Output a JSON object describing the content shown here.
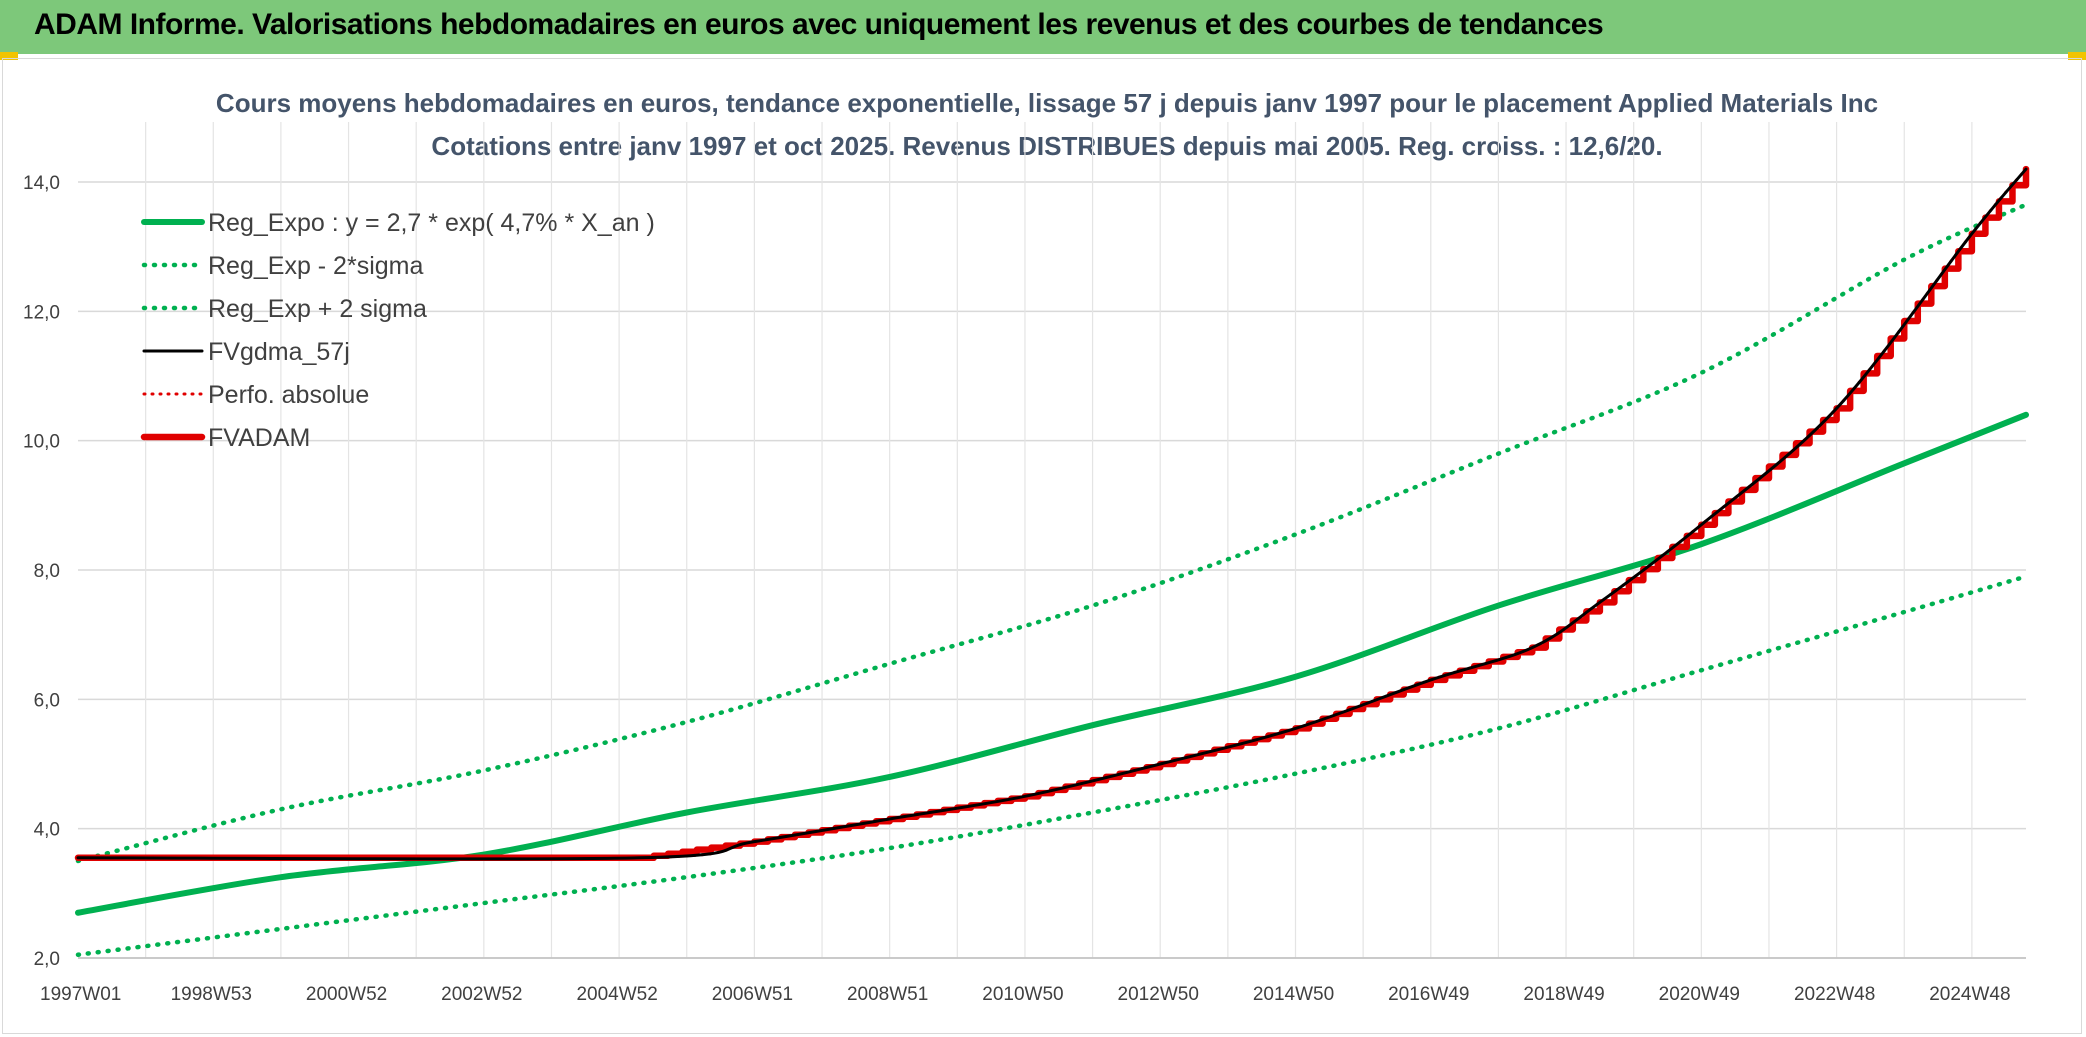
{
  "banner": {
    "title": "ADAM Informe. Valorisations hebdomadaires en euros avec uniquement les revenus et des courbes de tendances"
  },
  "colors": {
    "banner": "#7dc87a",
    "trend": "#00b050",
    "fv": "#000000",
    "adam": "#e00000",
    "accent": "#f2c400"
  },
  "chart_data": {
    "type": "line",
    "title": "Cours moyens hebdomadaires en euros, tendance exponentielle, lissage 57 j depuis janv 1997 pour le placement Applied Materials Inc",
    "subtitle": "Cotations entre janv 1997 et oct 2025. Revenus DISTRIBUES depuis mai 2005. Reg. croiss. : 12,6/20.",
    "xlabel": "",
    "ylabel": "",
    "ylim": [
      2.0,
      14.0
    ],
    "y_ticks": [
      "2,0",
      "4,0",
      "6,0",
      "8,0",
      "10,0",
      "12,0",
      "14,0"
    ],
    "x_ticks": [
      "1997W01",
      "1998W53",
      "2000W52",
      "2002W52",
      "2004W52",
      "2006W51",
      "2008W51",
      "2010W50",
      "2012W50",
      "2014W50",
      "2016W49",
      "2018W49",
      "2020W49",
      "2022W48",
      "2024W48"
    ],
    "grid": true,
    "legend_placement": "top-left",
    "series": [
      {
        "name": "Reg_Expo : y = 2,7 * exp( 4,7% *  X_an )",
        "style": "solid-green",
        "x": [
          1997,
          2000,
          2003,
          2006,
          2009,
          2012,
          2015,
          2018,
          2021,
          2024,
          2025.8
        ],
        "y": [
          2.7,
          3.25,
          3.6,
          4.25,
          4.8,
          5.6,
          6.35,
          7.45,
          8.4,
          9.65,
          10.4
        ]
      },
      {
        "name": "Reg_Exp - 2*sigma",
        "style": "dotted-green",
        "x": [
          1997,
          2000,
          2003,
          2006,
          2009,
          2012,
          2015,
          2018,
          2021,
          2024,
          2025.8
        ],
        "y": [
          2.05,
          2.45,
          2.85,
          3.25,
          3.7,
          4.25,
          4.85,
          5.55,
          6.45,
          7.35,
          7.9
        ]
      },
      {
        "name": "Reg_Exp + 2 sigma",
        "style": "dotted-green",
        "x": [
          1997,
          2000,
          2003,
          2006,
          2009,
          2012,
          2015,
          2018,
          2021,
          2024,
          2025.8
        ],
        "y": [
          3.5,
          4.3,
          4.9,
          5.65,
          6.55,
          7.45,
          8.55,
          9.8,
          11.05,
          12.8,
          13.65
        ]
      },
      {
        "name": "FVgdma_57j",
        "style": "solid-black",
        "x": [
          1997,
          2005.3,
          2007,
          2009,
          2011,
          2013,
          2015,
          2017,
          2018.5,
          2019.5,
          2021,
          2023,
          2025,
          2025.8
        ],
        "y": [
          3.55,
          3.55,
          3.8,
          4.15,
          4.5,
          5.0,
          5.55,
          6.3,
          6.8,
          7.5,
          8.7,
          10.5,
          13.2,
          14.2
        ]
      },
      {
        "name": "Perfo. absolue",
        "style": "dotted-red",
        "x": [
          1997,
          2005.3,
          2007,
          2009,
          2011,
          2013,
          2015,
          2017,
          2018.5,
          2019.5,
          2021,
          2023,
          2025,
          2025.8
        ],
        "y": [
          3.55,
          3.55,
          3.8,
          4.15,
          4.5,
          5.0,
          5.55,
          6.3,
          6.8,
          7.5,
          8.7,
          10.5,
          13.2,
          14.2
        ]
      },
      {
        "name": "FVADAM",
        "style": "solid-red",
        "x": [
          1997,
          2005.3,
          2007,
          2009,
          2011,
          2013,
          2015,
          2017,
          2018.5,
          2019.5,
          2021,
          2023,
          2025,
          2025.8
        ],
        "y": [
          3.55,
          3.55,
          3.8,
          4.15,
          4.5,
          5.0,
          5.55,
          6.3,
          6.8,
          7.5,
          8.7,
          10.5,
          13.2,
          14.2
        ]
      }
    ]
  }
}
